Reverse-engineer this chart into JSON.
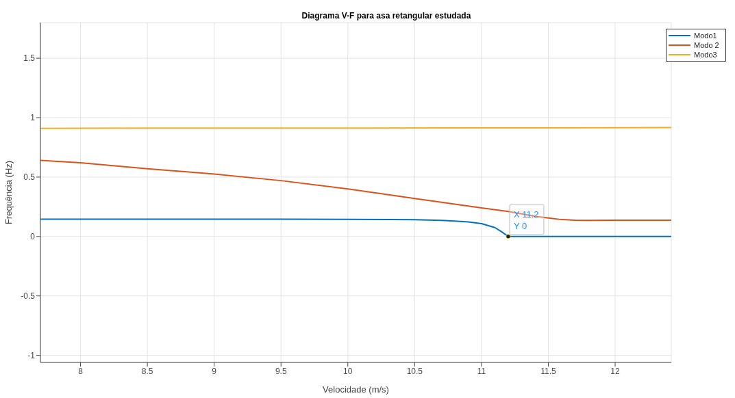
{
  "chart_data": {
    "type": "line",
    "title": "Diagrama V-F para asa retangular estudada",
    "xlabel": "Velocidade (m/s)",
    "ylabel": "Frequência (Hz)",
    "xlim": [
      7.7,
      12.42
    ],
    "xticks": [
      8,
      8.5,
      9,
      9.5,
      10,
      10.5,
      11,
      11.5,
      12
    ],
    "ylim": [
      -1.06,
      1.8
    ],
    "yticks": [
      -1,
      -0.5,
      0,
      0.5,
      1,
      1.5
    ],
    "grid": true,
    "legend": "top right",
    "marker": "none",
    "line_style": "solid",
    "annotations": [
      {
        "text": "X 11.2\nY 0",
        "x": 11.2,
        "y": 0
      }
    ],
    "series": [
      {
        "name": "Modo1",
        "color": "#0072bd",
        "x": [
          7.7,
          8,
          8.5,
          9,
          9.5,
          10,
          10.3,
          10.5,
          10.7,
          10.8,
          10.9,
          11,
          11.1,
          11.15,
          11.2,
          11.5,
          12,
          12.42
        ],
        "values": [
          0.145,
          0.145,
          0.145,
          0.145,
          0.145,
          0.144,
          0.143,
          0.141,
          0.135,
          0.13,
          0.122,
          0.108,
          0.075,
          0.04,
          0,
          0,
          0,
          0
        ]
      },
      {
        "name": "Modo 2",
        "color": "#d95319",
        "x": [
          7.7,
          8,
          8.5,
          9,
          9.5,
          10,
          10.5,
          11,
          11.2,
          11.4,
          11.5,
          11.6,
          11.7,
          11.8,
          12,
          12.42
        ],
        "values": [
          0.64,
          0.62,
          0.57,
          0.525,
          0.47,
          0.4,
          0.32,
          0.24,
          0.21,
          0.17,
          0.155,
          0.142,
          0.137,
          0.136,
          0.137,
          0.137
        ]
      },
      {
        "name": "Modo3",
        "color": "#edb120",
        "x": [
          7.7,
          8.5,
          9,
          10,
          11,
          12,
          12.42
        ],
        "values": [
          0.91,
          0.912,
          0.912,
          0.913,
          0.914,
          0.915,
          0.916
        ]
      }
    ]
  }
}
